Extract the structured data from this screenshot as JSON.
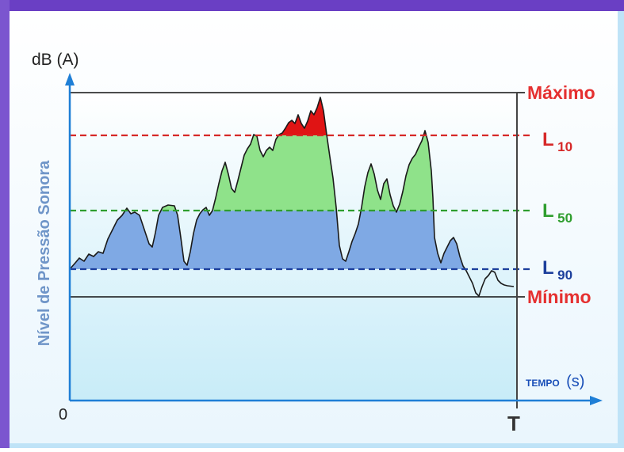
{
  "diagram": {
    "y_axis_unit": "dB (A)",
    "y_axis_title": "Nível de Pressão Sonora",
    "x_axis_title": "TEMPO",
    "x_axis_unit": "(s)",
    "origin_label": "0",
    "end_label": "T",
    "levels": {
      "max": {
        "label": "Máximo"
      },
      "l10": {
        "main": "L",
        "sub": "10"
      },
      "l50": {
        "main": "L",
        "sub": "50"
      },
      "l90": {
        "main": "L",
        "sub": "90"
      },
      "min": {
        "label": "Mínimo"
      }
    },
    "colors": {
      "frame_purple": "#6a3fc4",
      "frame_light_blue": "#c8e6f8",
      "axis_blue": "#1f7fd6",
      "max_red": "#e53030",
      "l10_red": "#d62828",
      "l50_green": "#2f9e2f",
      "l90_blue": "#1c3f9c",
      "fill_blue": "#7fa9e4",
      "fill_green": "#8fe28a",
      "fill_red": "#e01414",
      "y_title_blue": "#6f95c8",
      "x_title_blue": "#1a4fb8"
    }
  }
}
